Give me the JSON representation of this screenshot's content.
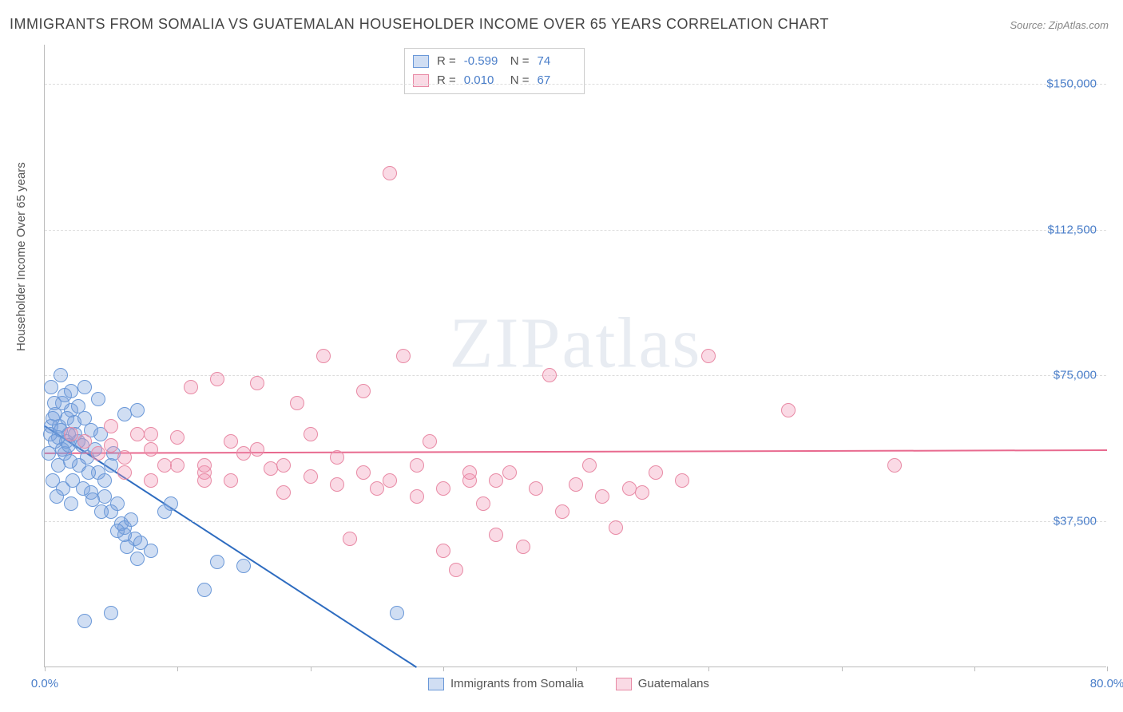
{
  "title": "IMMIGRANTS FROM SOMALIA VS GUATEMALAN HOUSEHOLDER INCOME OVER 65 YEARS CORRELATION CHART",
  "source_prefix": "Source: ",
  "source": "ZipAtlas.com",
  "ylabel": "Householder Income Over 65 years",
  "watermark": "ZIPatlas",
  "chart": {
    "type": "scatter",
    "background_color": "#ffffff",
    "grid_color": "#dddddd",
    "axis_color": "#bbbbbb",
    "tick_label_color": "#4a7ec9",
    "xlim": [
      0,
      80
    ],
    "ylim": [
      0,
      160000
    ],
    "xtick_positions": [
      0,
      10,
      20,
      30,
      40,
      50,
      60,
      70,
      80
    ],
    "xtick_labels": {
      "0": "0.0%",
      "80": "80.0%"
    },
    "ytick_positions": [
      37500,
      75000,
      112500,
      150000
    ],
    "ytick_labels": [
      "$37,500",
      "$75,000",
      "$112,500",
      "$150,000"
    ],
    "marker_radius": 9,
    "marker_border_width": 1.5,
    "line_width": 2,
    "series": [
      {
        "name": "Immigrants from Somalia",
        "fill_color": "rgba(120,160,220,0.35)",
        "border_color": "#6a98d8",
        "line_color": "#2e6cc0",
        "R": "-0.599",
        "N": "74",
        "trend": {
          "x1": 0,
          "y1": 62000,
          "x2": 28,
          "y2": 0
        },
        "points": [
          [
            0.5,
            62000
          ],
          [
            0.8,
            65000
          ],
          [
            1.0,
            59000
          ],
          [
            1.2,
            75000
          ],
          [
            1.3,
            68000
          ],
          [
            1.5,
            55000
          ],
          [
            1.5,
            70000
          ],
          [
            1.8,
            60000
          ],
          [
            2.0,
            66000
          ],
          [
            2.0,
            71000
          ],
          [
            2.2,
            63000
          ],
          [
            2.5,
            58000
          ],
          [
            2.5,
            67000
          ],
          [
            2.8,
            57000
          ],
          [
            3.0,
            64000
          ],
          [
            3.0,
            72000
          ],
          [
            3.2,
            54000
          ],
          [
            3.5,
            61000
          ],
          [
            3.5,
            45000
          ],
          [
            3.8,
            56000
          ],
          [
            4.0,
            69000
          ],
          [
            4.0,
            50000
          ],
          [
            4.2,
            60000
          ],
          [
            4.5,
            48000
          ],
          [
            4.5,
            44000
          ],
          [
            5.0,
            52000
          ],
          [
            5.0,
            40000
          ],
          [
            5.2,
            55000
          ],
          [
            5.5,
            42000
          ],
          [
            5.8,
            37000
          ],
          [
            6.0,
            65000
          ],
          [
            6.0,
            36000
          ],
          [
            6.5,
            38000
          ],
          [
            6.8,
            33000
          ],
          [
            7.0,
            66000
          ],
          [
            7.2,
            32000
          ],
          [
            3.0,
            12000
          ],
          [
            5.0,
            14000
          ],
          [
            6.0,
            34000
          ],
          [
            7.0,
            28000
          ],
          [
            8.0,
            30000
          ],
          [
            9.0,
            40000
          ],
          [
            9.5,
            42000
          ],
          [
            12.0,
            20000
          ],
          [
            13.0,
            27000
          ],
          [
            15.0,
            26000
          ],
          [
            26.5,
            14000
          ],
          [
            0.3,
            55000
          ],
          [
            0.6,
            48000
          ],
          [
            1.0,
            52000
          ],
          [
            1.4,
            46000
          ],
          [
            0.9,
            44000
          ],
          [
            2.0,
            42000
          ],
          [
            0.7,
            68000
          ],
          [
            1.1,
            62000
          ],
          [
            1.6,
            58000
          ],
          [
            2.3,
            60000
          ],
          [
            2.6,
            52000
          ],
          [
            3.3,
            50000
          ],
          [
            0.4,
            60000
          ],
          [
            0.8,
            58000
          ],
          [
            1.3,
            56000
          ],
          [
            1.9,
            53000
          ],
          [
            0.5,
            72000
          ],
          [
            1.7,
            64000
          ],
          [
            2.1,
            48000
          ],
          [
            2.9,
            46000
          ],
          [
            3.6,
            43000
          ],
          [
            4.3,
            40000
          ],
          [
            5.5,
            35000
          ],
          [
            6.2,
            31000
          ],
          [
            0.6,
            64000
          ],
          [
            1.2,
            61000
          ],
          [
            1.8,
            57000
          ]
        ]
      },
      {
        "name": "Guatemalans",
        "fill_color": "rgba(240,150,180,0.35)",
        "border_color": "#e88aa5",
        "line_color": "#e86a8f",
        "R": "0.010",
        "N": "67",
        "trend": {
          "x1": 0,
          "y1": 55000,
          "x2": 80,
          "y2": 55800
        },
        "points": [
          [
            2,
            60000
          ],
          [
            3,
            58000
          ],
          [
            4,
            55000
          ],
          [
            5,
            62000
          ],
          [
            5,
            57000
          ],
          [
            6,
            54000
          ],
          [
            7,
            60000
          ],
          [
            8,
            56000
          ],
          [
            9,
            52000
          ],
          [
            10,
            59000
          ],
          [
            11,
            72000
          ],
          [
            12,
            50000
          ],
          [
            13,
            74000
          ],
          [
            14,
            48000
          ],
          [
            15,
            55000
          ],
          [
            16,
            73000
          ],
          [
            17,
            51000
          ],
          [
            18,
            45000
          ],
          [
            19,
            68000
          ],
          [
            20,
            49000
          ],
          [
            21,
            80000
          ],
          [
            22,
            47000
          ],
          [
            23,
            33000
          ],
          [
            24,
            71000
          ],
          [
            25,
            46000
          ],
          [
            26,
            127000
          ],
          [
            27,
            80000
          ],
          [
            28,
            44000
          ],
          [
            29,
            58000
          ],
          [
            30,
            30000
          ],
          [
            31,
            25000
          ],
          [
            32,
            48000
          ],
          [
            33,
            42000
          ],
          [
            34,
            34000
          ],
          [
            35,
            50000
          ],
          [
            36,
            31000
          ],
          [
            37,
            46000
          ],
          [
            38,
            75000
          ],
          [
            39,
            40000
          ],
          [
            40,
            47000
          ],
          [
            41,
            52000
          ],
          [
            42,
            44000
          ],
          [
            43,
            36000
          ],
          [
            44,
            46000
          ],
          [
            45,
            45000
          ],
          [
            46,
            50000
          ],
          [
            48,
            48000
          ],
          [
            50,
            80000
          ],
          [
            56,
            66000
          ],
          [
            64,
            52000
          ],
          [
            6,
            50000
          ],
          [
            8,
            48000
          ],
          [
            10,
            52000
          ],
          [
            12,
            52000
          ],
          [
            14,
            58000
          ],
          [
            16,
            56000
          ],
          [
            18,
            52000
          ],
          [
            20,
            60000
          ],
          [
            22,
            54000
          ],
          [
            24,
            50000
          ],
          [
            26,
            48000
          ],
          [
            28,
            52000
          ],
          [
            30,
            46000
          ],
          [
            32,
            50000
          ],
          [
            34,
            48000
          ],
          [
            8,
            60000
          ],
          [
            12,
            48000
          ]
        ]
      }
    ]
  },
  "legend_labels": {
    "series1": "Immigrants from Somalia",
    "series2": "Guatemalans",
    "R_label": "R =",
    "N_label": "N ="
  }
}
